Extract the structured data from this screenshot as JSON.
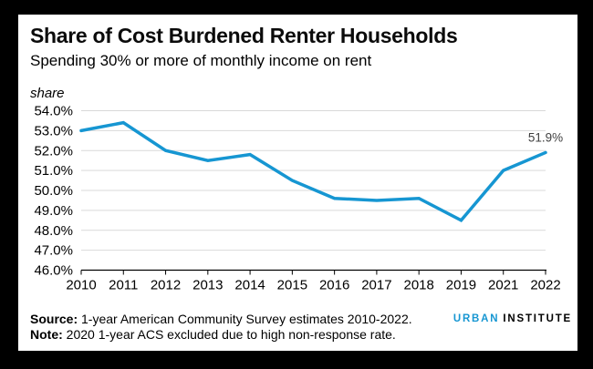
{
  "chart_data": {
    "type": "line",
    "title": "Share of Cost Burdened Renter Households",
    "subtitle": "Spending 30% or more of monthly income on rent",
    "y_axis_label": "share",
    "categories": [
      "2010",
      "2011",
      "2012",
      "2013",
      "2014",
      "2015",
      "2016",
      "2017",
      "2018",
      "2019",
      "2021",
      "2022"
    ],
    "values": [
      53.0,
      53.4,
      52.0,
      51.5,
      51.8,
      50.5,
      49.6,
      49.5,
      49.6,
      48.5,
      51.0,
      51.9
    ],
    "ylim": [
      46.0,
      54.0
    ],
    "y_ticks": [
      "54.0%",
      "53.0%",
      "52.0%",
      "51.0%",
      "50.0%",
      "49.0%",
      "48.0%",
      "47.0%",
      "46.0%"
    ],
    "end_label": "51.9%",
    "grid": true,
    "legend": "none",
    "line_color": "#1696d2",
    "grid_color": "#d9d9d9",
    "axis_color": "#000000",
    "end_label_color": "#3f3f3f"
  },
  "footer": {
    "source_label": "Source:",
    "source_text": " 1-year American Community Survey estimates 2010-2022.",
    "note_label": "Note:",
    "note_text": " 2020 1-year ACS excluded due to high non-response rate.",
    "logo": {
      "urban": "URBAN",
      "institute": "INSTITUTE",
      "urban_color": "#1696d2",
      "institute_color": "#000000"
    }
  }
}
